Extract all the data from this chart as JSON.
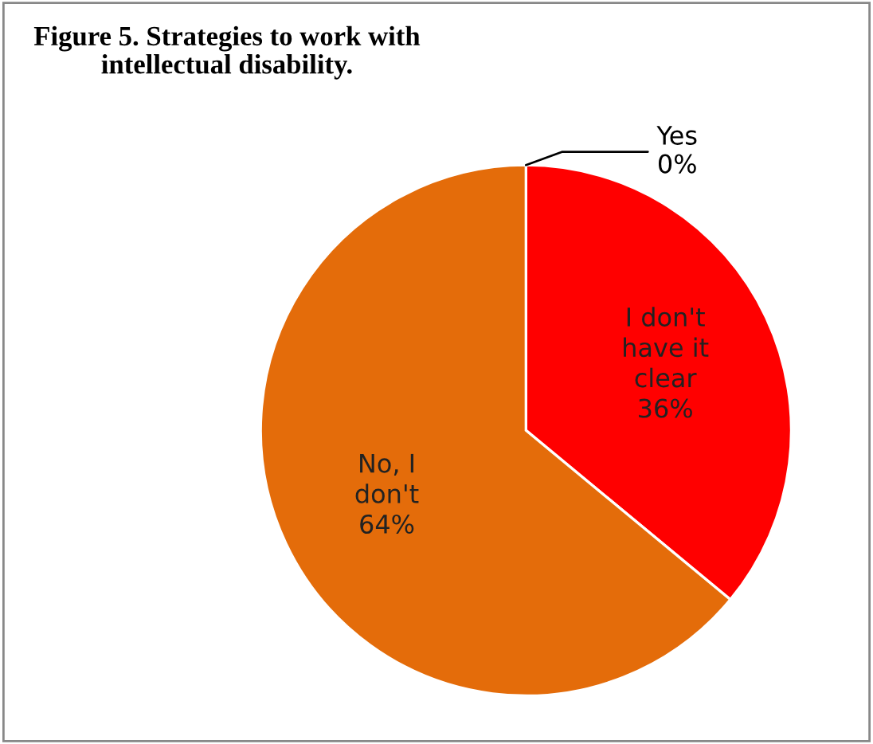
{
  "chart_data": {
    "type": "pie",
    "title": "Figure 5. Strategies to work with\nintellectual disability.",
    "categories": [
      "Yes",
      "I don't\nhave it\nclear",
      "No, I\ndon't"
    ],
    "values": [
      0,
      36,
      64
    ],
    "colors": [
      "#4f81bd",
      "#ff0000",
      "#e46c0a"
    ],
    "value_labels": [
      "0%",
      "36%",
      "64%"
    ],
    "legend": false
  }
}
